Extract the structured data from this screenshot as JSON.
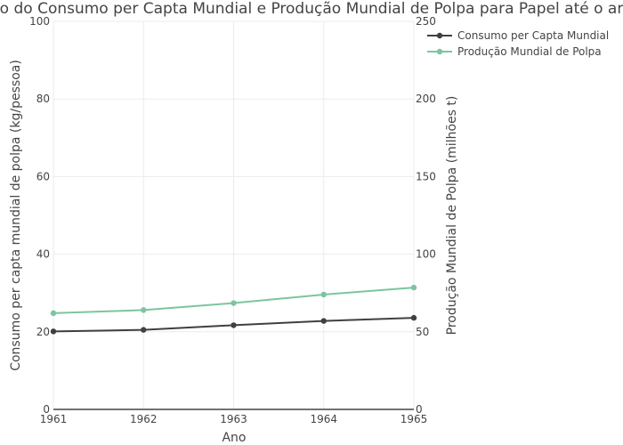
{
  "chart_data": {
    "type": "line",
    "title": "o do Consumo per Capta Mundial e Produção Mundial de Polpa para Papel até o ar",
    "xlabel": "Ano",
    "ylabel": "Consumo per capta mundial de polpa (kg/pessoa)",
    "y2label": "Produção Mundial de Polpa (milhões t)",
    "x": [
      "1961",
      "1962",
      "1963",
      "1964",
      "1965"
    ],
    "xlim": [
      1961,
      1965
    ],
    "ylim": [
      0,
      100
    ],
    "y2lim": [
      0,
      250
    ],
    "yticks": [
      "0",
      "20",
      "40",
      "60",
      "80",
      "100"
    ],
    "y2ticks": [
      "0",
      "50",
      "100",
      "150",
      "200",
      "250"
    ],
    "grid": true,
    "legend_position": "top-right",
    "series": [
      {
        "name": "Consumo per Capta Mundial",
        "axis": "y",
        "color": "#404040",
        "values": [
          20.1,
          20.5,
          21.7,
          22.8,
          23.6
        ]
      },
      {
        "name": "Produção Mundial de Polpa",
        "axis": "y2",
        "color": "#7dc4a0",
        "values": [
          62,
          64,
          68.5,
          74,
          78.5
        ]
      }
    ]
  }
}
